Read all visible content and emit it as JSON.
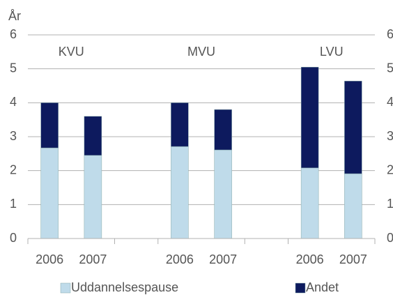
{
  "chart_data": {
    "type": "stacked_bar",
    "y_label": "År",
    "group_labels": [
      "KVU",
      "MVU",
      "LVU"
    ],
    "categories": [
      "2006",
      "2007",
      null,
      "2006",
      "2007",
      null,
      "2006",
      "2007"
    ],
    "series": [
      {
        "name": "Uddannelsespause",
        "color": "#bfdbea",
        "values": [
          2.67,
          2.45,
          null,
          2.71,
          2.61,
          null,
          2.08,
          1.91
        ]
      },
      {
        "name": "Andet",
        "color": "#0d1a5e",
        "values": [
          1.33,
          1.15,
          null,
          1.29,
          1.19,
          null,
          2.97,
          2.73
        ]
      }
    ],
    "ylim": [
      0,
      6
    ],
    "yticks": [
      0,
      1,
      2,
      3,
      4,
      5,
      6
    ],
    "y2lim": [
      0,
      6
    ],
    "y2ticks": [
      0,
      1,
      2,
      3,
      4,
      5,
      6
    ],
    "grid": true,
    "legend": "bottom"
  }
}
